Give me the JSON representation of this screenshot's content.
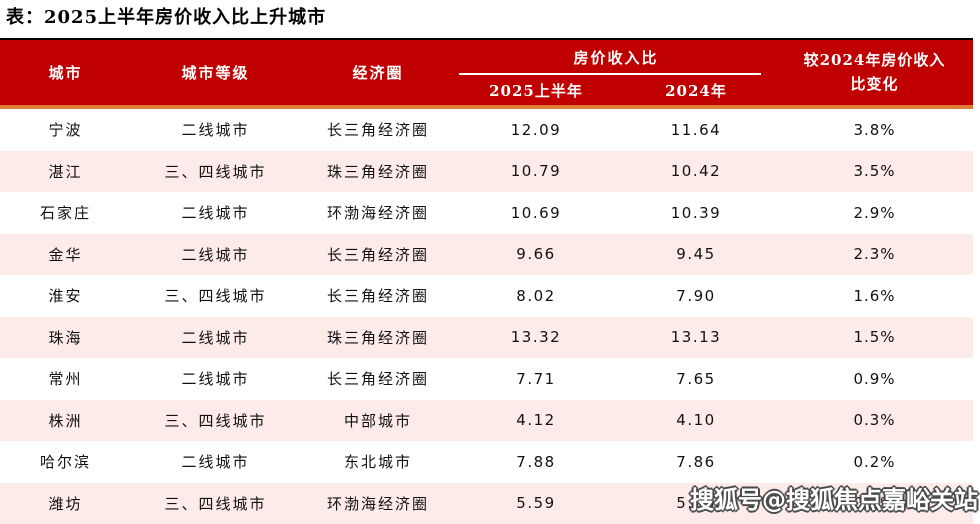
{
  "title": "表：2025上半年房价收入比上升城市",
  "colors": {
    "header_bg": "#C00000",
    "header_text": "#FFFFFF",
    "accent_line": "#DC7E35",
    "top_line": "#000000",
    "row_alt_bg": "#FCEBE9",
    "body_text": "#111111"
  },
  "header": {
    "city": "城市",
    "tier": "城市等级",
    "circle": "经济圈",
    "group": "房价收入比",
    "sub_2025": "2025上半年",
    "sub_2024": "2024年",
    "change_line1": "较2024年房价收入",
    "change_line2": "比变化"
  },
  "watermark": "搜狐号@搜狐焦点嘉峪关站",
  "chart_data": {
    "type": "table",
    "title": "表：2025上半年房价收入比上升城市",
    "columns": [
      "城市",
      "城市等级",
      "经济圈",
      "房价收入比 2025上半年",
      "房价收入比 2024年",
      "较2024年房价收入比变化"
    ],
    "rows": [
      {
        "city": "宁波",
        "tier": "二线城市",
        "circle": "长三角经济圈",
        "ratio_2025h1": "12.09",
        "ratio_2024": "11.64",
        "change": "3.8%"
      },
      {
        "city": "湛江",
        "tier": "三、四线城市",
        "circle": "珠三角经济圈",
        "ratio_2025h1": "10.79",
        "ratio_2024": "10.42",
        "change": "3.5%"
      },
      {
        "city": "石家庄",
        "tier": "二线城市",
        "circle": "环渤海经济圈",
        "ratio_2025h1": "10.69",
        "ratio_2024": "10.39",
        "change": "2.9%"
      },
      {
        "city": "金华",
        "tier": "二线城市",
        "circle": "长三角经济圈",
        "ratio_2025h1": "9.66",
        "ratio_2024": "9.45",
        "change": "2.3%"
      },
      {
        "city": "淮安",
        "tier": "三、四线城市",
        "circle": "长三角经济圈",
        "ratio_2025h1": "8.02",
        "ratio_2024": "7.90",
        "change": "1.6%"
      },
      {
        "city": "珠海",
        "tier": "二线城市",
        "circle": "珠三角经济圈",
        "ratio_2025h1": "13.32",
        "ratio_2024": "13.13",
        "change": "1.5%"
      },
      {
        "city": "常州",
        "tier": "二线城市",
        "circle": "长三角经济圈",
        "ratio_2025h1": "7.71",
        "ratio_2024": "7.65",
        "change": "0.9%"
      },
      {
        "city": "株洲",
        "tier": "三、四线城市",
        "circle": "中部城市",
        "ratio_2025h1": "4.12",
        "ratio_2024": "4.10",
        "change": "0.3%"
      },
      {
        "city": "哈尔滨",
        "tier": "二线城市",
        "circle": "东北城市",
        "ratio_2025h1": "7.88",
        "ratio_2024": "7.86",
        "change": "0.2%"
      },
      {
        "city": "潍坊",
        "tier": "三、四线城市",
        "circle": "环渤海经济圈",
        "ratio_2025h1": "5.59",
        "ratio_2024": "5.58",
        "change": "0.2%"
      }
    ]
  }
}
